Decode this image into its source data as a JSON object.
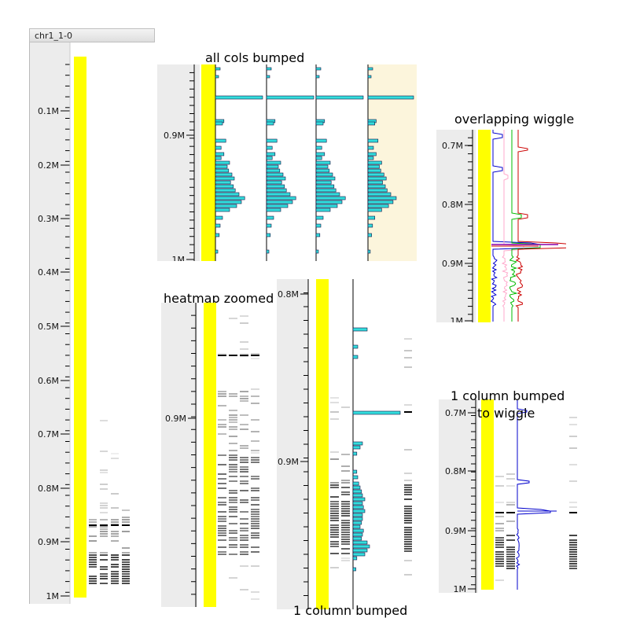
{
  "window": {
    "title": "chr1_1-0"
  },
  "main_view": {
    "ticks": [
      "0.1M",
      "0.2M",
      "0.3M",
      "0.4M",
      "0.5M",
      "0.6M",
      "0.7M",
      "0.8M",
      "0.9M",
      "1M"
    ]
  },
  "panels": {
    "all_cols_bumped": {
      "title": "all cols bumped",
      "ticks": [
        "0.9M",
        "1M"
      ]
    },
    "overlapping_wiggle": {
      "title": "overlapping wiggle",
      "ticks": [
        "0.7M",
        "0.8M",
        "0.9M",
        "1M"
      ]
    },
    "heatmap_zoomed": {
      "title": "heatmap zoomed",
      "ticks": [
        "0.9M"
      ]
    },
    "one_column_bumped": {
      "title": "1 column bumped",
      "ticks": [
        "0.8M",
        "0.9M"
      ]
    },
    "one_column_bumped_to_wiggle": {
      "title": "1 column bumped\nto wiggle",
      "title_line1": "1 column bumped",
      "title_line2": "to wiggle",
      "ticks": [
        "0.7M",
        "0.8M",
        "0.9M",
        "1M"
      ]
    }
  },
  "colors": {
    "highlight": "#ffff00",
    "histogram": "#33dddd",
    "ruler_bg": "#ececec",
    "selected_column_bg": "#fcf5dc"
  }
}
